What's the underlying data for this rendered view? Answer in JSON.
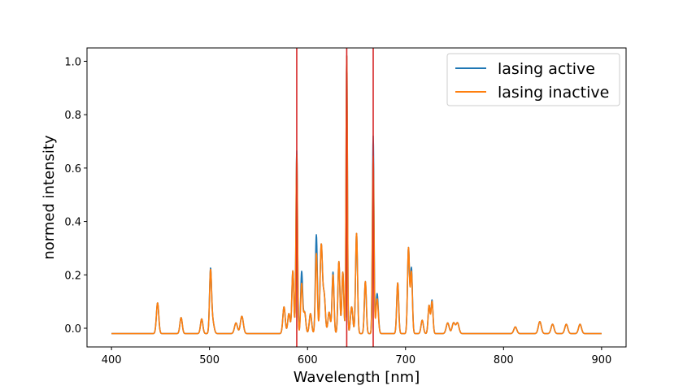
{
  "chart_data": {
    "type": "line",
    "title": "",
    "xlabel": "Wavelength [nm]",
    "ylabel": "normed intensity",
    "xlim": [
      375,
      925
    ],
    "ylim": [
      -0.07,
      1.05
    ],
    "xticks": [
      "400",
      "500",
      "600",
      "700",
      "800",
      "900"
    ],
    "yticks": [
      "0.0",
      "0.2",
      "0.4",
      "0.6",
      "0.8",
      "1.0"
    ],
    "grid": false,
    "legend_position": "top-right",
    "vlines": [
      {
        "x": 589,
        "color": "#d62728"
      },
      {
        "x": 640,
        "color": "#d62728"
      },
      {
        "x": 667,
        "color": "#d62728"
      }
    ],
    "series": [
      {
        "name": "lasing active",
        "color": "#1f77b4",
        "peaks": [
          [
            447,
            0.095,
            1.2
          ],
          [
            471,
            0.04,
            1.2
          ],
          [
            492,
            0.035,
            1.2
          ],
          [
            501,
            0.205,
            1.0
          ],
          [
            503,
            0.03,
            1.5
          ],
          [
            527,
            0.02,
            1.5
          ],
          [
            533,
            0.045,
            1.5
          ],
          [
            576,
            0.08,
            1.2
          ],
          [
            581,
            0.055,
            1.2
          ],
          [
            585,
            0.215,
            1.0
          ],
          [
            589,
            0.665,
            0.8
          ],
          [
            594,
            0.21,
            1.0
          ],
          [
            597,
            0.06,
            1.2
          ],
          [
            603,
            0.055,
            1.2
          ],
          [
            609,
            0.35,
            1.0
          ],
          [
            614,
            0.31,
            1.2
          ],
          [
            617,
            0.12,
            1.2
          ],
          [
            622,
            0.06,
            1.2
          ],
          [
            626,
            0.21,
            1.0
          ],
          [
            632,
            0.25,
            1.0
          ],
          [
            636,
            0.21,
            1.0
          ],
          [
            640,
            1.02,
            0.7
          ],
          [
            645,
            0.08,
            1.2
          ],
          [
            650,
            0.355,
            1.0
          ],
          [
            659,
            0.175,
            1.0
          ],
          [
            667,
            0.72,
            0.8
          ],
          [
            671,
            0.13,
            1.2
          ],
          [
            692,
            0.17,
            1.0
          ],
          [
            703,
            0.3,
            1.0
          ],
          [
            706,
            0.225,
            1.0
          ],
          [
            717,
            0.03,
            1.2
          ],
          [
            724,
            0.085,
            1.0
          ],
          [
            727,
            0.105,
            1.0
          ],
          [
            743,
            0.02,
            1.5
          ],
          [
            749,
            0.02,
            1.5
          ],
          [
            753,
            0.02,
            1.5
          ],
          [
            812,
            0.005,
            1.5
          ],
          [
            837,
            0.025,
            1.5
          ],
          [
            850,
            0.015,
            1.5
          ],
          [
            864,
            0.015,
            1.5
          ],
          [
            878,
            0.015,
            1.5
          ]
        ]
      },
      {
        "name": "lasing inactive",
        "color": "#ff7f0e",
        "peaks": [
          [
            447,
            0.095,
            1.2
          ],
          [
            471,
            0.04,
            1.2
          ],
          [
            492,
            0.035,
            1.2
          ],
          [
            501,
            0.2,
            1.0
          ],
          [
            503,
            0.03,
            1.5
          ],
          [
            527,
            0.02,
            1.5
          ],
          [
            533,
            0.045,
            1.5
          ],
          [
            576,
            0.08,
            1.2
          ],
          [
            581,
            0.055,
            1.2
          ],
          [
            585,
            0.215,
            1.0
          ],
          [
            589,
            0.65,
            0.8
          ],
          [
            594,
            0.165,
            1.0
          ],
          [
            597,
            0.06,
            1.2
          ],
          [
            603,
            0.055,
            1.2
          ],
          [
            609,
            0.28,
            1.0
          ],
          [
            614,
            0.31,
            1.2
          ],
          [
            617,
            0.12,
            1.2
          ],
          [
            622,
            0.06,
            1.2
          ],
          [
            626,
            0.2,
            1.0
          ],
          [
            632,
            0.25,
            1.0
          ],
          [
            636,
            0.21,
            1.0
          ],
          [
            640,
            1.02,
            0.7
          ],
          [
            645,
            0.08,
            1.2
          ],
          [
            650,
            0.355,
            1.0
          ],
          [
            659,
            0.175,
            1.0
          ],
          [
            667,
            0.645,
            0.8
          ],
          [
            671,
            0.11,
            1.2
          ],
          [
            692,
            0.17,
            1.0
          ],
          [
            703,
            0.3,
            1.0
          ],
          [
            706,
            0.21,
            1.0
          ],
          [
            717,
            0.03,
            1.2
          ],
          [
            724,
            0.085,
            1.0
          ],
          [
            727,
            0.1,
            1.0
          ],
          [
            743,
            0.02,
            1.5
          ],
          [
            749,
            0.02,
            1.5
          ],
          [
            753,
            0.02,
            1.5
          ],
          [
            812,
            0.005,
            1.5
          ],
          [
            837,
            0.025,
            1.5
          ],
          [
            850,
            0.015,
            1.5
          ],
          [
            864,
            0.015,
            1.5
          ],
          [
            878,
            0.015,
            1.5
          ]
        ]
      }
    ],
    "x_range": [
      400,
      900
    ],
    "baseline": -0.02
  }
}
